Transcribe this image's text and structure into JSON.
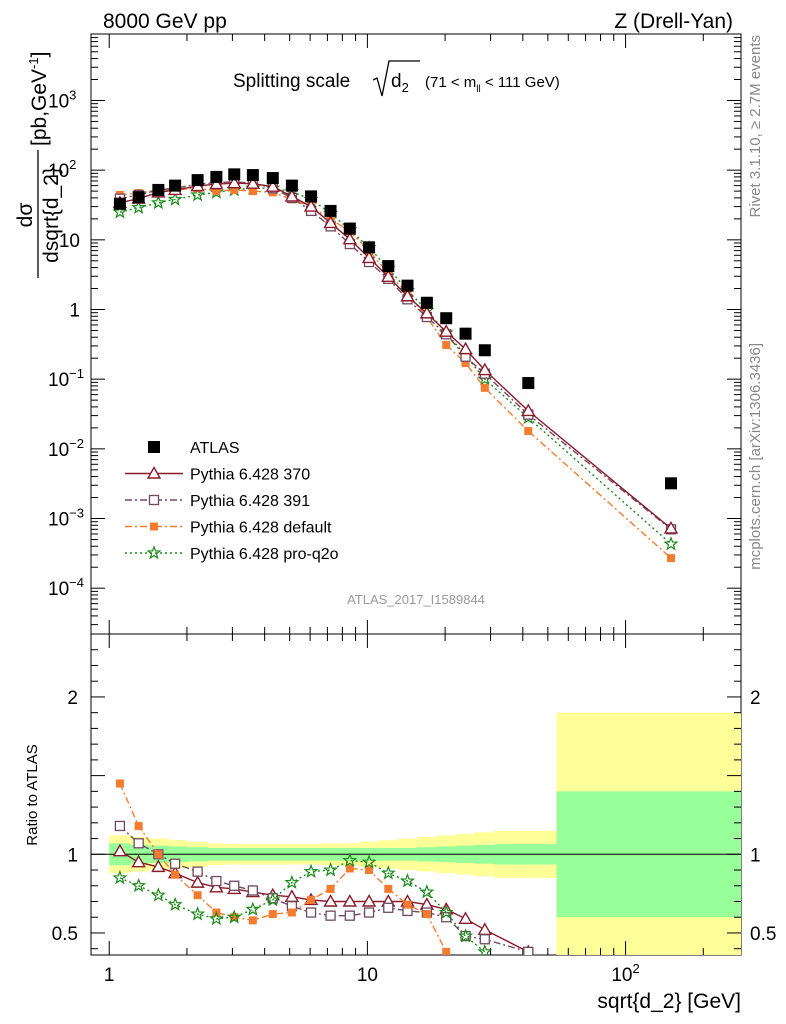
{
  "header": {
    "left": "8000 GeV pp",
    "right": "Z (Drell-Yan)"
  },
  "plot_title": {
    "main": "Splitting scale",
    "symbol": "d",
    "symbol_sub": "2",
    "range": "(71 < m",
    "range_sub": "ll",
    "range_end": " < 111 GeV)"
  },
  "side_text": {
    "rivet": "Rivet 3.1.10, ≥ 2.7M events",
    "mcplots": "mcplots.cern.ch [arXiv:1306.3436]"
  },
  "watermark": "ATLAS_2017_I1589844",
  "y_axis_main": {
    "label_num": "dσ",
    "label_den": "dsqrt{d_2}",
    "label_unit": "[pb,GeV",
    "label_unit_sup": "-1",
    "label_unit_end": "]"
  },
  "y_axis_ratio": {
    "label": "Ratio to ATLAS"
  },
  "x_axis": {
    "label": "sqrt{d_2} [GeV]"
  },
  "colors": {
    "atlas": "#000000",
    "p370": "#8b1a2b",
    "p391": "#6e4a5e",
    "pdefault": "#f47c30",
    "pproq2o": "#1a8a1a",
    "band_inner": "#99ff99",
    "band_outer": "#ffff99"
  },
  "chart_data": [
    {
      "type": "scatter",
      "panel": "main",
      "xscale": "log",
      "yscale": "log",
      "xlim": [
        0.85,
        280
      ],
      "ylim": [
        2.2e-05,
        9000
      ],
      "x_ticklabels": [],
      "y_ticklabels": [
        {
          "v": 0.0001,
          "b": "10",
          "e": "−4"
        },
        {
          "v": 0.001,
          "b": "10",
          "e": "−3"
        },
        {
          "v": 0.01,
          "b": "10",
          "e": "−2"
        },
        {
          "v": 0.1,
          "b": "10",
          "e": "−1"
        },
        {
          "v": 1,
          "b": "1",
          "e": ""
        },
        {
          "v": 10,
          "b": "10",
          "e": ""
        },
        {
          "v": 100,
          "b": "10",
          "e": "2"
        },
        {
          "v": 1000,
          "b": "10",
          "e": "3"
        }
      ],
      "legend_position": "bottom-left",
      "series": [
        {
          "name": "ATLAS",
          "key": "atlas",
          "marker": "square",
          "line": "none",
          "x": [
            1.1,
            1.3,
            1.55,
            1.8,
            2.2,
            2.6,
            3.05,
            3.6,
            4.3,
            5.1,
            6.05,
            7.2,
            8.55,
            10.15,
            12.05,
            14.3,
            17,
            20.2,
            24,
            28.5,
            42,
            150
          ],
          "y": [
            33,
            41,
            52,
            60,
            72,
            80,
            87,
            85,
            77,
            60,
            42,
            26,
            14.5,
            7.8,
            4.2,
            2.2,
            1.25,
            0.75,
            0.45,
            0.26,
            0.088,
            0.0032
          ]
        },
        {
          "name": "Pythia 6.428 370",
          "key": "p370",
          "marker": "triangle-open",
          "line": "solid",
          "x": [
            1.1,
            1.3,
            1.55,
            1.8,
            2.2,
            2.6,
            3.05,
            3.6,
            4.3,
            5.1,
            6.05,
            7.2,
            8.55,
            10.15,
            12.05,
            14.3,
            17,
            20.2,
            24,
            28.5,
            42,
            150
          ],
          "y": [
            34,
            39,
            48,
            52,
            59,
            63,
            65,
            64,
            58,
            42,
            30,
            17.5,
            10.2,
            5.5,
            2.95,
            1.55,
            0.88,
            0.48,
            0.27,
            0.135,
            0.035,
            0.00072
          ]
        },
        {
          "name": "Pythia 6.428 391",
          "key": "p391",
          "marker": "square-open",
          "line": "dashdot",
          "x": [
            1.1,
            1.3,
            1.55,
            1.8,
            2.2,
            2.6,
            3.05,
            3.6,
            4.3,
            5.1,
            6.05,
            7.2,
            8.55,
            10.15,
            12.05,
            14.3,
            17,
            20.2,
            24,
            28.5,
            42,
            150
          ],
          "y": [
            39,
            44,
            52,
            55,
            63,
            66,
            68,
            65,
            55,
            40,
            26,
            15.6,
            8.7,
            4.8,
            2.75,
            1.4,
            0.78,
            0.44,
            0.21,
            0.12,
            0.031,
            0.0007
          ]
        },
        {
          "name": "Pythia 6.428 default",
          "key": "pdefault",
          "marker": "square-filled",
          "line": "dashdot",
          "x": [
            1.1,
            1.3,
            1.55,
            1.8,
            2.2,
            2.6,
            3.05,
            3.6,
            4.3,
            5.1,
            6.05,
            7.2,
            8.55,
            10.15,
            12.05,
            14.3,
            17,
            20.2,
            24,
            28.5,
            42,
            150
          ],
          "y": [
            44,
            47,
            52,
            52,
            55,
            50,
            52,
            50,
            48,
            38,
            30,
            20,
            13.2,
            7,
            3.3,
            1.7,
            0.77,
            0.31,
            0.17,
            0.075,
            0.018,
            0.00027
          ]
        },
        {
          "name": "Pythia 6.428 pro-q2o",
          "key": "pproq2o",
          "marker": "star",
          "line": "dotted",
          "x": [
            1.1,
            1.3,
            1.55,
            1.8,
            2.2,
            2.6,
            3.05,
            3.6,
            4.3,
            5.1,
            6.05,
            7.2,
            8.55,
            10.15,
            12.05,
            14.3,
            17,
            20.2,
            24,
            28.5,
            42,
            150
          ],
          "y": [
            25,
            29,
            34,
            38,
            44,
            48,
            52,
            55,
            55,
            49,
            38,
            24,
            14,
            7.7,
            3.9,
            1.88,
            0.97,
            0.46,
            0.22,
            0.1,
            0.028,
            0.00043
          ]
        }
      ]
    },
    {
      "type": "line",
      "panel": "ratio",
      "xscale": "log",
      "yscale": "linear",
      "xlim": [
        0.85,
        280
      ],
      "ylim": [
        0.36,
        2.4
      ],
      "x_ticklabels": [
        {
          "v": 1,
          "b": "1",
          "e": ""
        },
        {
          "v": 10,
          "b": "10",
          "e": ""
        },
        {
          "v": 100,
          "b": "10",
          "e": "2"
        }
      ],
      "y_ticklabels": [
        {
          "v": 0.5,
          "label": "0.5"
        },
        {
          "v": 1,
          "label": "1"
        },
        {
          "v": 2,
          "label": "2"
        }
      ],
      "reference": 1,
      "bands": {
        "x_edges": [
          1.0,
          1.2,
          1.4,
          1.7,
          2.0,
          2.4,
          2.8,
          3.3,
          3.9,
          4.7,
          5.6,
          6.6,
          7.8,
          9.3,
          11,
          13.2,
          15.6,
          18.5,
          22,
          26,
          31,
          54,
          280
        ],
        "inner_half": [
          0.07,
          0.06,
          0.055,
          0.05,
          0.045,
          0.04,
          0.04,
          0.04,
          0.04,
          0.04,
          0.04,
          0.04,
          0.04,
          0.04,
          0.04,
          0.04,
          0.045,
          0.05,
          0.055,
          0.06,
          0.065,
          0.4
        ],
        "outer_half": [
          0.12,
          0.11,
          0.1,
          0.09,
          0.08,
          0.07,
          0.065,
          0.065,
          0.065,
          0.065,
          0.065,
          0.07,
          0.07,
          0.08,
          0.09,
          0.1,
          0.11,
          0.12,
          0.13,
          0.14,
          0.15,
          0.9
        ]
      },
      "series": [
        {
          "name": "Pythia 6.428 370",
          "key": "p370",
          "x": [
            1.1,
            1.3,
            1.55,
            1.8,
            2.2,
            2.6,
            3.05,
            3.6,
            4.3,
            5.1,
            6.05,
            7.2,
            8.55,
            10.15,
            12.05,
            14.3,
            17,
            20.2,
            24,
            28.5,
            42
          ],
          "y": [
            1.02,
            0.95,
            0.92,
            0.88,
            0.82,
            0.79,
            0.78,
            0.76,
            0.74,
            0.73,
            0.71,
            0.7,
            0.7,
            0.7,
            0.7,
            0.7,
            0.68,
            0.65,
            0.59,
            0.52,
            0.38
          ]
        },
        {
          "name": "Pythia 6.428 391",
          "key": "p391",
          "x": [
            1.1,
            1.3,
            1.55,
            1.8,
            2.2,
            2.6,
            3.05,
            3.6,
            4.3,
            5.1,
            6.05,
            7.2,
            8.55,
            10.15,
            12.05,
            14.3,
            17,
            20.2,
            24,
            28.5,
            42
          ],
          "y": [
            1.18,
            1.07,
            1.0,
            0.94,
            0.89,
            0.83,
            0.8,
            0.77,
            0.72,
            0.67,
            0.63,
            0.61,
            0.61,
            0.63,
            0.66,
            0.64,
            0.63,
            0.6,
            0.48,
            0.46,
            0.38
          ]
        },
        {
          "name": "Pythia 6.428 default",
          "key": "pdefault",
          "x": [
            1.1,
            1.3,
            1.55,
            1.8,
            2.2,
            2.6,
            3.05,
            3.6,
            4.3,
            5.1,
            6.05,
            7.2,
            8.55,
            10.15,
            12.05,
            14.3,
            17,
            20.2
          ],
          "y": [
            1.45,
            1.18,
            1.0,
            0.87,
            0.74,
            0.63,
            0.6,
            0.58,
            0.62,
            0.63,
            0.71,
            0.78,
            0.91,
            0.9,
            0.78,
            0.68,
            0.62,
            0.38
          ]
        },
        {
          "name": "Pythia 6.428 pro-q2o",
          "key": "pproq2o",
          "x": [
            1.1,
            1.3,
            1.55,
            1.8,
            2.2,
            2.6,
            3.05,
            3.6,
            4.3,
            5.1,
            6.05,
            7.2,
            8.55,
            10.15,
            12.05,
            14.3,
            17,
            20.2,
            24,
            28.5
          ],
          "y": [
            0.85,
            0.8,
            0.74,
            0.68,
            0.62,
            0.59,
            0.6,
            0.65,
            0.71,
            0.82,
            0.89,
            0.9,
            0.96,
            0.95,
            0.88,
            0.83,
            0.76,
            0.63,
            0.48,
            0.38
          ]
        }
      ]
    }
  ]
}
